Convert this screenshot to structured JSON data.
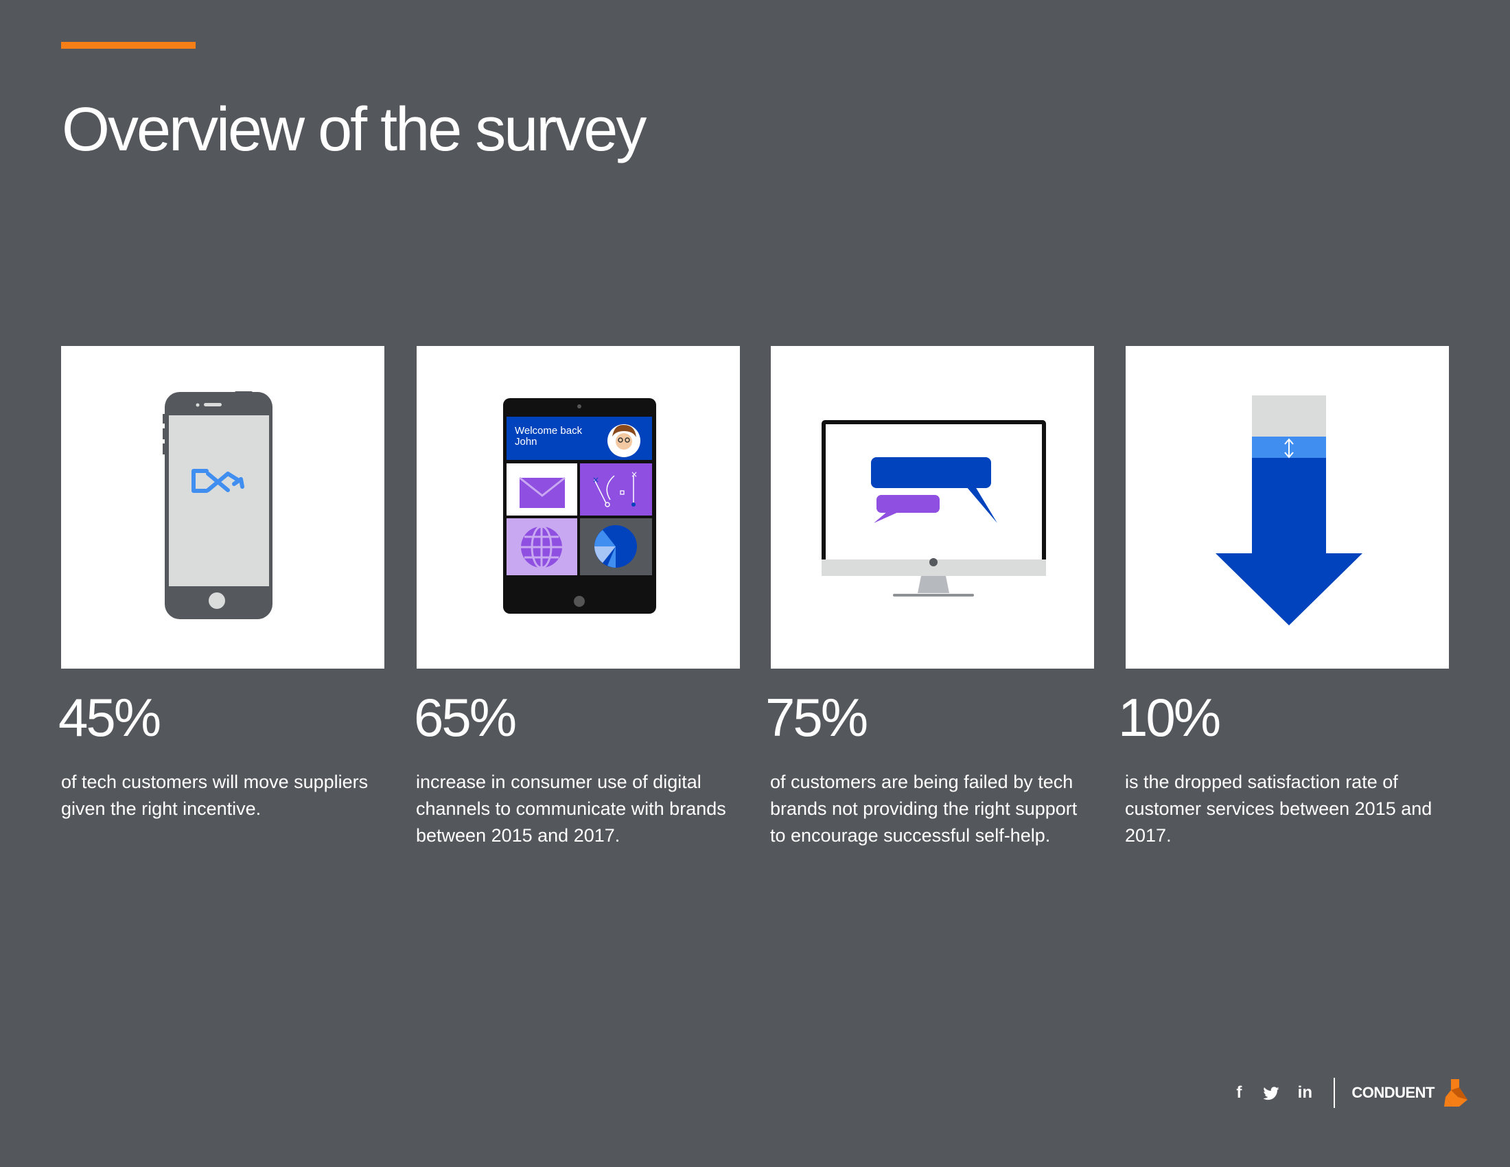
{
  "page": {
    "title": "Overview of the survey",
    "accent_color": "#f57e17",
    "background_color": "#54575b"
  },
  "stats": [
    {
      "value": "45%",
      "description": "of tech customers will move suppliers given the right incentive.",
      "icon": "smartphone-switch-icon"
    },
    {
      "value": "65%",
      "description": "increase in consumer use of digital channels to communicate with brands between 2015 and 2017.",
      "icon": "tablet-apps-icon"
    },
    {
      "value": "75%",
      "description": "of customers are being failed by tech brands not providing the right support to encourage successful self-help.",
      "icon": "desktop-chat-icon"
    },
    {
      "value": "10%",
      "description": "is the dropped satisfaction rate of customer services between 2015 and 2017.",
      "icon": "down-arrow-icon"
    }
  ],
  "tablet_screen": {
    "welcome_text": "Welcome back",
    "user_name": "John"
  },
  "footer": {
    "social": [
      "facebook-icon",
      "twitter-icon",
      "linkedin-icon"
    ],
    "facebook_glyph": "f",
    "linkedin_glyph": "in",
    "brand": "CONDUENT"
  },
  "colors": {
    "brand_blue": "#0043bd",
    "light_blue": "#3f8ef0",
    "purple": "#8f4fe0",
    "lavender": "#c9a8f2",
    "device_gray": "#55585c",
    "screen_gray": "#d9dcdb"
  }
}
